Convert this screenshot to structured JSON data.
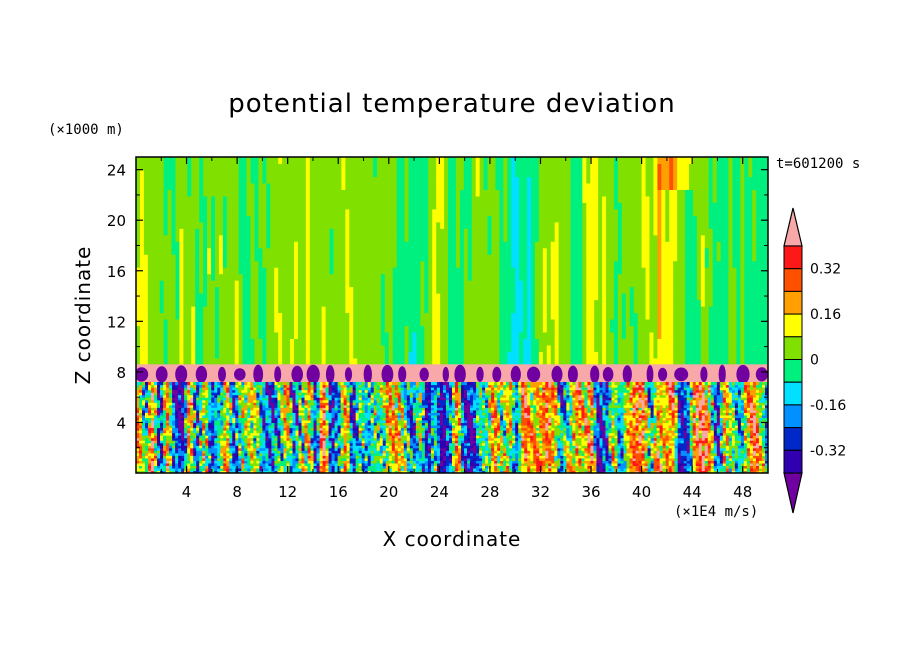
{
  "chart_data": {
    "type": "heatmap",
    "title": "potential temperature deviation",
    "xlabel": "X coordinate",
    "ylabel": "Z coordinate",
    "x_unit": "(×1E4 m/s)",
    "y_unit": "(×1000 m)",
    "time_label": "t=601200 s",
    "xlim": [
      0,
      50
    ],
    "ylim": [
      0,
      25
    ],
    "x_ticks": [
      4,
      8,
      12,
      16,
      20,
      24,
      28,
      32,
      36,
      40,
      44,
      48
    ],
    "y_ticks": [
      4,
      8,
      12,
      16,
      20,
      24
    ],
    "colorbar": {
      "levels": [
        -0.48,
        -0.4,
        -0.32,
        -0.24,
        -0.16,
        -0.08,
        0,
        0.08,
        0.16,
        0.24,
        0.32,
        0.4
      ],
      "tick_labels": [
        "0.32",
        "0.16",
        "0",
        "-0.16",
        "-0.32"
      ],
      "tick_values": [
        0.32,
        0.16,
        0,
        -0.16,
        -0.32
      ],
      "colors": [
        "#7000a0",
        "#3000b0",
        "#0028c8",
        "#0090ff",
        "#00e0ff",
        "#00f080",
        "#80e000",
        "#ffff00",
        "#ffa000",
        "#ff5000",
        "#ff1818",
        "#f8a8a8"
      ],
      "extend": "both"
    },
    "regions": [
      {
        "name": "upper layer",
        "z_range": [
          8.6,
          25
        ],
        "dominant_values": [
          -0.08,
          0.08
        ],
        "pattern": "vertical plumes"
      },
      {
        "name": "inversion band",
        "z_range": [
          7.2,
          8.6
        ],
        "dominant_values": [
          0.48
        ],
        "pattern": "uniform band"
      },
      {
        "name": "mixed layer",
        "z_range": [
          0,
          7.2
        ],
        "dominant_values": [
          -0.48,
          0.48
        ],
        "pattern": "turbulent eddies"
      }
    ]
  }
}
